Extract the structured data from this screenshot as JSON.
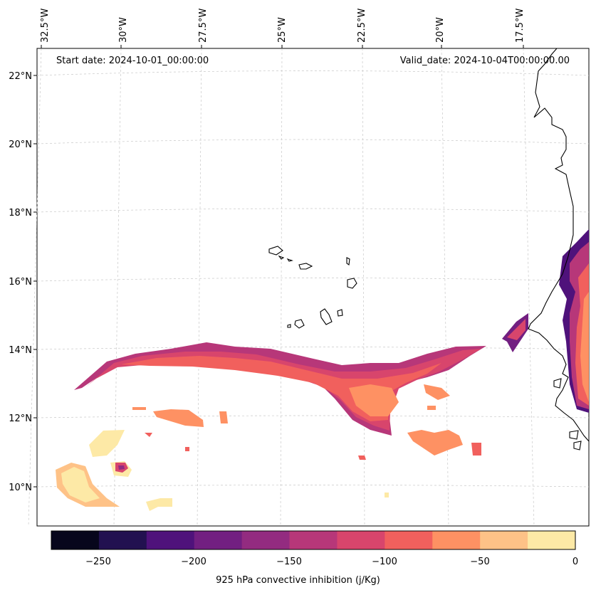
{
  "header": {
    "start_date": "Start date: 2024-10-01_00:00:00",
    "valid_date": "Valid_date: 2024-10-04T00:00:00.00"
  },
  "map": {
    "region": "Cape Verde / West Africa coast",
    "lon_labels": [
      "32.5°W",
      "30°W",
      "27.5°W",
      "25°W",
      "22.5°W",
      "20°W",
      "17.5°W"
    ],
    "lat_labels": [
      "22°N",
      "20°N",
      "18°N",
      "16°N",
      "14°N",
      "12°N",
      "10°N"
    ],
    "lon_range": [
      -32.5,
      -15.8
    ],
    "lat_range": [
      8.9,
      22.8
    ]
  },
  "colorbar": {
    "label": "925 hPa convective inhibition (j/Kg)",
    "ticks": [
      "−250",
      "−200",
      "−150",
      "−100",
      "−50",
      "0"
    ],
    "bounds": [
      -275,
      -250,
      -225,
      -200,
      -175,
      -150,
      -125,
      -100,
      -75,
      -50,
      -25,
      0
    ],
    "colors": [
      "#07061c",
      "#221150",
      "#4f127b",
      "#721f81",
      "#932b80",
      "#b73779",
      "#d8456c",
      "#f1605d",
      "#fe9163",
      "#fec287",
      "#fde9a6"
    ]
  }
}
